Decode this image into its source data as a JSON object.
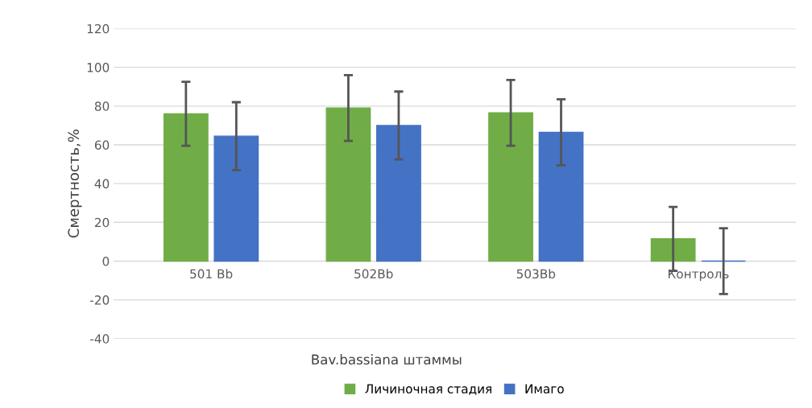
{
  "chart_data": {
    "type": "bar",
    "xlabel": "Bav.bassiana штаммы",
    "ylabel": "Смертность,%",
    "categories": [
      "501 Bb",
      "502Bb",
      "503Bb",
      "Контроль"
    ],
    "series": [
      {
        "name": "Личиночная стадия",
        "color": "#70ad47",
        "values": [
          76,
          79,
          76.5,
          11.5
        ],
        "errors": [
          16.5,
          17,
          17,
          16.5
        ]
      },
      {
        "name": "Имаго",
        "color": "#4472c4",
        "values": [
          64.5,
          70,
          66.5,
          0
        ],
        "errors": [
          17.5,
          17.5,
          17,
          17
        ]
      }
    ],
    "ylim": [
      -40,
      120
    ],
    "yticks": [
      -40,
      -20,
      0,
      20,
      40,
      60,
      80,
      100,
      120
    ],
    "grid": "y",
    "legend": "bottom"
  }
}
